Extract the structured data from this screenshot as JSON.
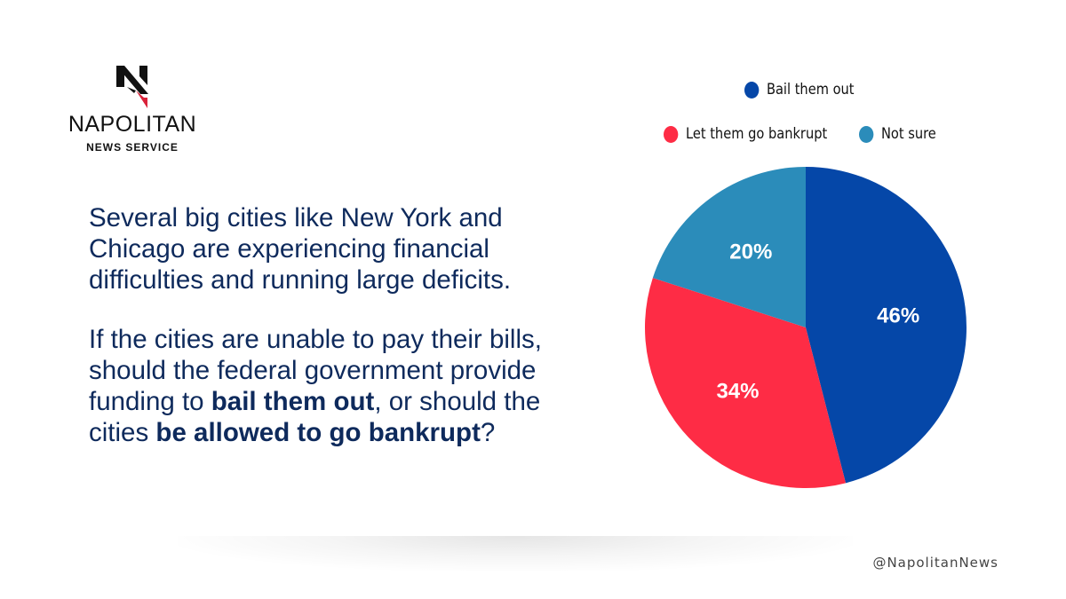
{
  "brand": {
    "name": "NAPOLITAN",
    "subtitle": "NEWS SERVICE",
    "logo_icon": "napolitan-n-logo",
    "colors": {
      "dark": "#111111",
      "accent": "#d9223a"
    }
  },
  "question": {
    "paragraph1": "Several big cities like New York and Chicago are experiencing financial difficulties and running large deficits.",
    "p2_part1": "If the cities are unable to pay their bills, should the federal government provide funding to ",
    "p2_bold1": "bail them out",
    "p2_part2": ", or should the cities ",
    "p2_bold2": "be allowed to go bankrupt",
    "p2_part3": "?"
  },
  "chart_data": {
    "type": "pie",
    "categories": [
      "Bail them out",
      "Let them go bankrupt",
      "Not sure"
    ],
    "values": [
      46,
      34,
      20
    ],
    "labels": [
      "46%",
      "34%",
      "20%"
    ],
    "colors": [
      "#0547a8",
      "#fe2c45",
      "#2b8cba"
    ],
    "start": "12 o'clock, clockwise",
    "legend_placement": "top"
  },
  "footer": {
    "handle": "@NapolitanNews"
  }
}
